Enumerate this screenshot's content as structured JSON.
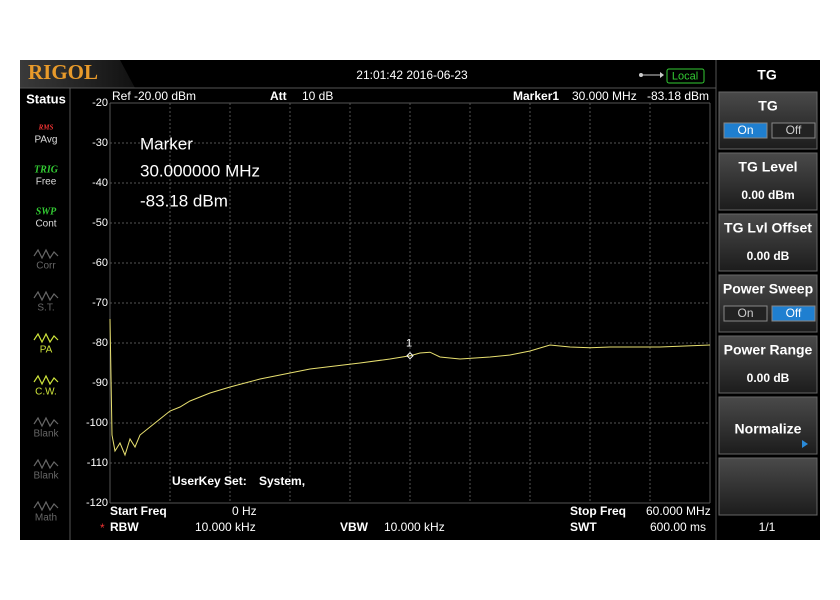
{
  "header": {
    "brand": "RIGOL",
    "datetime": "21:01:42 2016-06-23",
    "mode": "Local"
  },
  "status": {
    "title": "Status",
    "items": [
      {
        "tag": "RMS",
        "label": "PAvg"
      },
      {
        "tag": "TRIG",
        "label": "Free"
      },
      {
        "tag": "SWP",
        "label": "Cont"
      },
      {
        "label": "Corr"
      },
      {
        "label": "S.T."
      },
      {
        "label": "PA"
      },
      {
        "label": "C.W."
      },
      {
        "label": "Blank"
      },
      {
        "label": "Blank"
      },
      {
        "label": "Math"
      }
    ]
  },
  "chart_data": {
    "type": "line",
    "ref": "Ref -20.00 dBm",
    "att_label": "Att",
    "att": "10 dB",
    "marker_readout": {
      "label": "Marker1",
      "freq": "30.000 MHz",
      "level": "-83.18 dBm"
    },
    "annotation": [
      "Marker",
      "30.000000 MHz",
      "-83.18 dBm"
    ],
    "userkey": [
      "UserKey Set:",
      "System,"
    ],
    "footer": {
      "start_label": "Start Freq",
      "start": "0 Hz",
      "stop_label": "Stop Freq",
      "stop": "60.000 MHz",
      "rbw_flag": "*",
      "rbw_label": "RBW",
      "rbw": "10.000 kHz",
      "vbw_label": "VBW",
      "vbw": "10.000 kHz",
      "swt_label": "SWT",
      "swt": "600.00 ms"
    },
    "xlim": [
      0,
      60
    ],
    "xticks": [
      0,
      6,
      12,
      18,
      24,
      30,
      36,
      42,
      48,
      54,
      60
    ],
    "ylim": [
      -120,
      -20
    ],
    "yticks": [
      -20,
      -30,
      -40,
      -50,
      -60,
      -70,
      -80,
      -90,
      -100,
      -110,
      -120
    ],
    "grid": true,
    "color": "#e8e070",
    "x": [
      0,
      0.2,
      0.5,
      1,
      1.5,
      2,
      2.5,
      3,
      4,
      5,
      6,
      7,
      8,
      10,
      12,
      15,
      18,
      20,
      25,
      28,
      30,
      31,
      32,
      33,
      35,
      38,
      40,
      42,
      44,
      46,
      48,
      50,
      55,
      60
    ],
    "values": [
      -74,
      -103,
      -107,
      -105,
      -108,
      -104,
      -106,
      -103,
      -101,
      -99,
      -97,
      -96,
      -94.5,
      -92.5,
      -91,
      -89,
      -87.5,
      -86.5,
      -85,
      -84,
      -83.2,
      -82.5,
      -82.3,
      -83.5,
      -84,
      -83.5,
      -83,
      -82,
      -80.5,
      -81,
      -81.2,
      -81,
      -81,
      -80.5
    ],
    "marker": {
      "label": "1",
      "x": 30,
      "value": -83.18
    }
  },
  "menu": {
    "title": "TG",
    "buttons": [
      {
        "label": "TG",
        "options": [
          "On",
          "Off"
        ],
        "selected": 0
      },
      {
        "label": "TG Level",
        "value": "0.00 dBm"
      },
      {
        "label": "TG Lvl Offset",
        "value": "0.00 dB"
      },
      {
        "label": "Power Sweep",
        "options": [
          "On",
          "Off"
        ],
        "selected": 1
      },
      {
        "label": "Power Range",
        "value": "0.00 dB"
      },
      {
        "label": "Normalize"
      }
    ],
    "page": "1/1"
  }
}
